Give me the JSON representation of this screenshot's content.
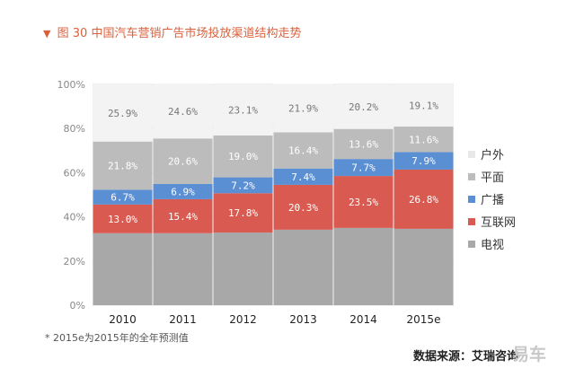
{
  "header": {
    "figure_label": "图 30",
    "title_text": "中国汽车营销广告市场投放渠道结构走势"
  },
  "chart_data": {
    "type": "stacked-bar",
    "title": "图 30 中国汽车营销广告市场投放渠道结构走势",
    "categories": [
      "2010",
      "2011",
      "2012",
      "2013",
      "2014",
      "2015e"
    ],
    "y_ticks": [
      "0%",
      "20%",
      "40%",
      "60%",
      "80%",
      "100%"
    ],
    "ylim": [
      0,
      100
    ],
    "series": [
      {
        "name": "电视",
        "color": "#a8a8a8",
        "values": [
          32.6,
          32.6,
          32.9,
          34.2,
          35.0,
          34.6
        ],
        "labels": [
          "",
          "",
          "",
          "",
          "",
          ""
        ]
      },
      {
        "name": "互联网",
        "color": "#d95a50",
        "values": [
          13.0,
          15.4,
          17.8,
          20.3,
          23.5,
          26.8
        ],
        "labels": [
          "13.0%",
          "15.4%",
          "17.8%",
          "20.3%",
          "23.5%",
          "26.8%"
        ]
      },
      {
        "name": "广播",
        "color": "#5b8fd4",
        "values": [
          6.7,
          6.9,
          7.2,
          7.4,
          7.7,
          7.9
        ],
        "labels": [
          "6.7%",
          "6.9%",
          "7.2%",
          "7.4%",
          "7.7%",
          "7.9%"
        ]
      },
      {
        "name": "平面",
        "color": "#bcbcbc",
        "values": [
          21.8,
          20.6,
          19.0,
          16.4,
          13.6,
          11.6
        ],
        "labels": [
          "21.8%",
          "20.6%",
          "19.0%",
          "16.4%",
          "13.6%",
          "11.6%"
        ]
      },
      {
        "name": "户外",
        "color": "#f3f3f3",
        "values": [
          25.9,
          24.6,
          23.1,
          21.9,
          20.2,
          19.1
        ],
        "labels": [
          "25.9%",
          "24.6%",
          "23.1%",
          "21.9%",
          "20.2%",
          "19.1%"
        ]
      }
    ],
    "legend_items": [
      "户外",
      "平面",
      "广播",
      "互联网",
      "电视"
    ],
    "legend_position": "right"
  },
  "footnote": "* 2015e为2015年的全年预测值",
  "source": "数据来源：艾瑞咨询",
  "watermark": "易车"
}
